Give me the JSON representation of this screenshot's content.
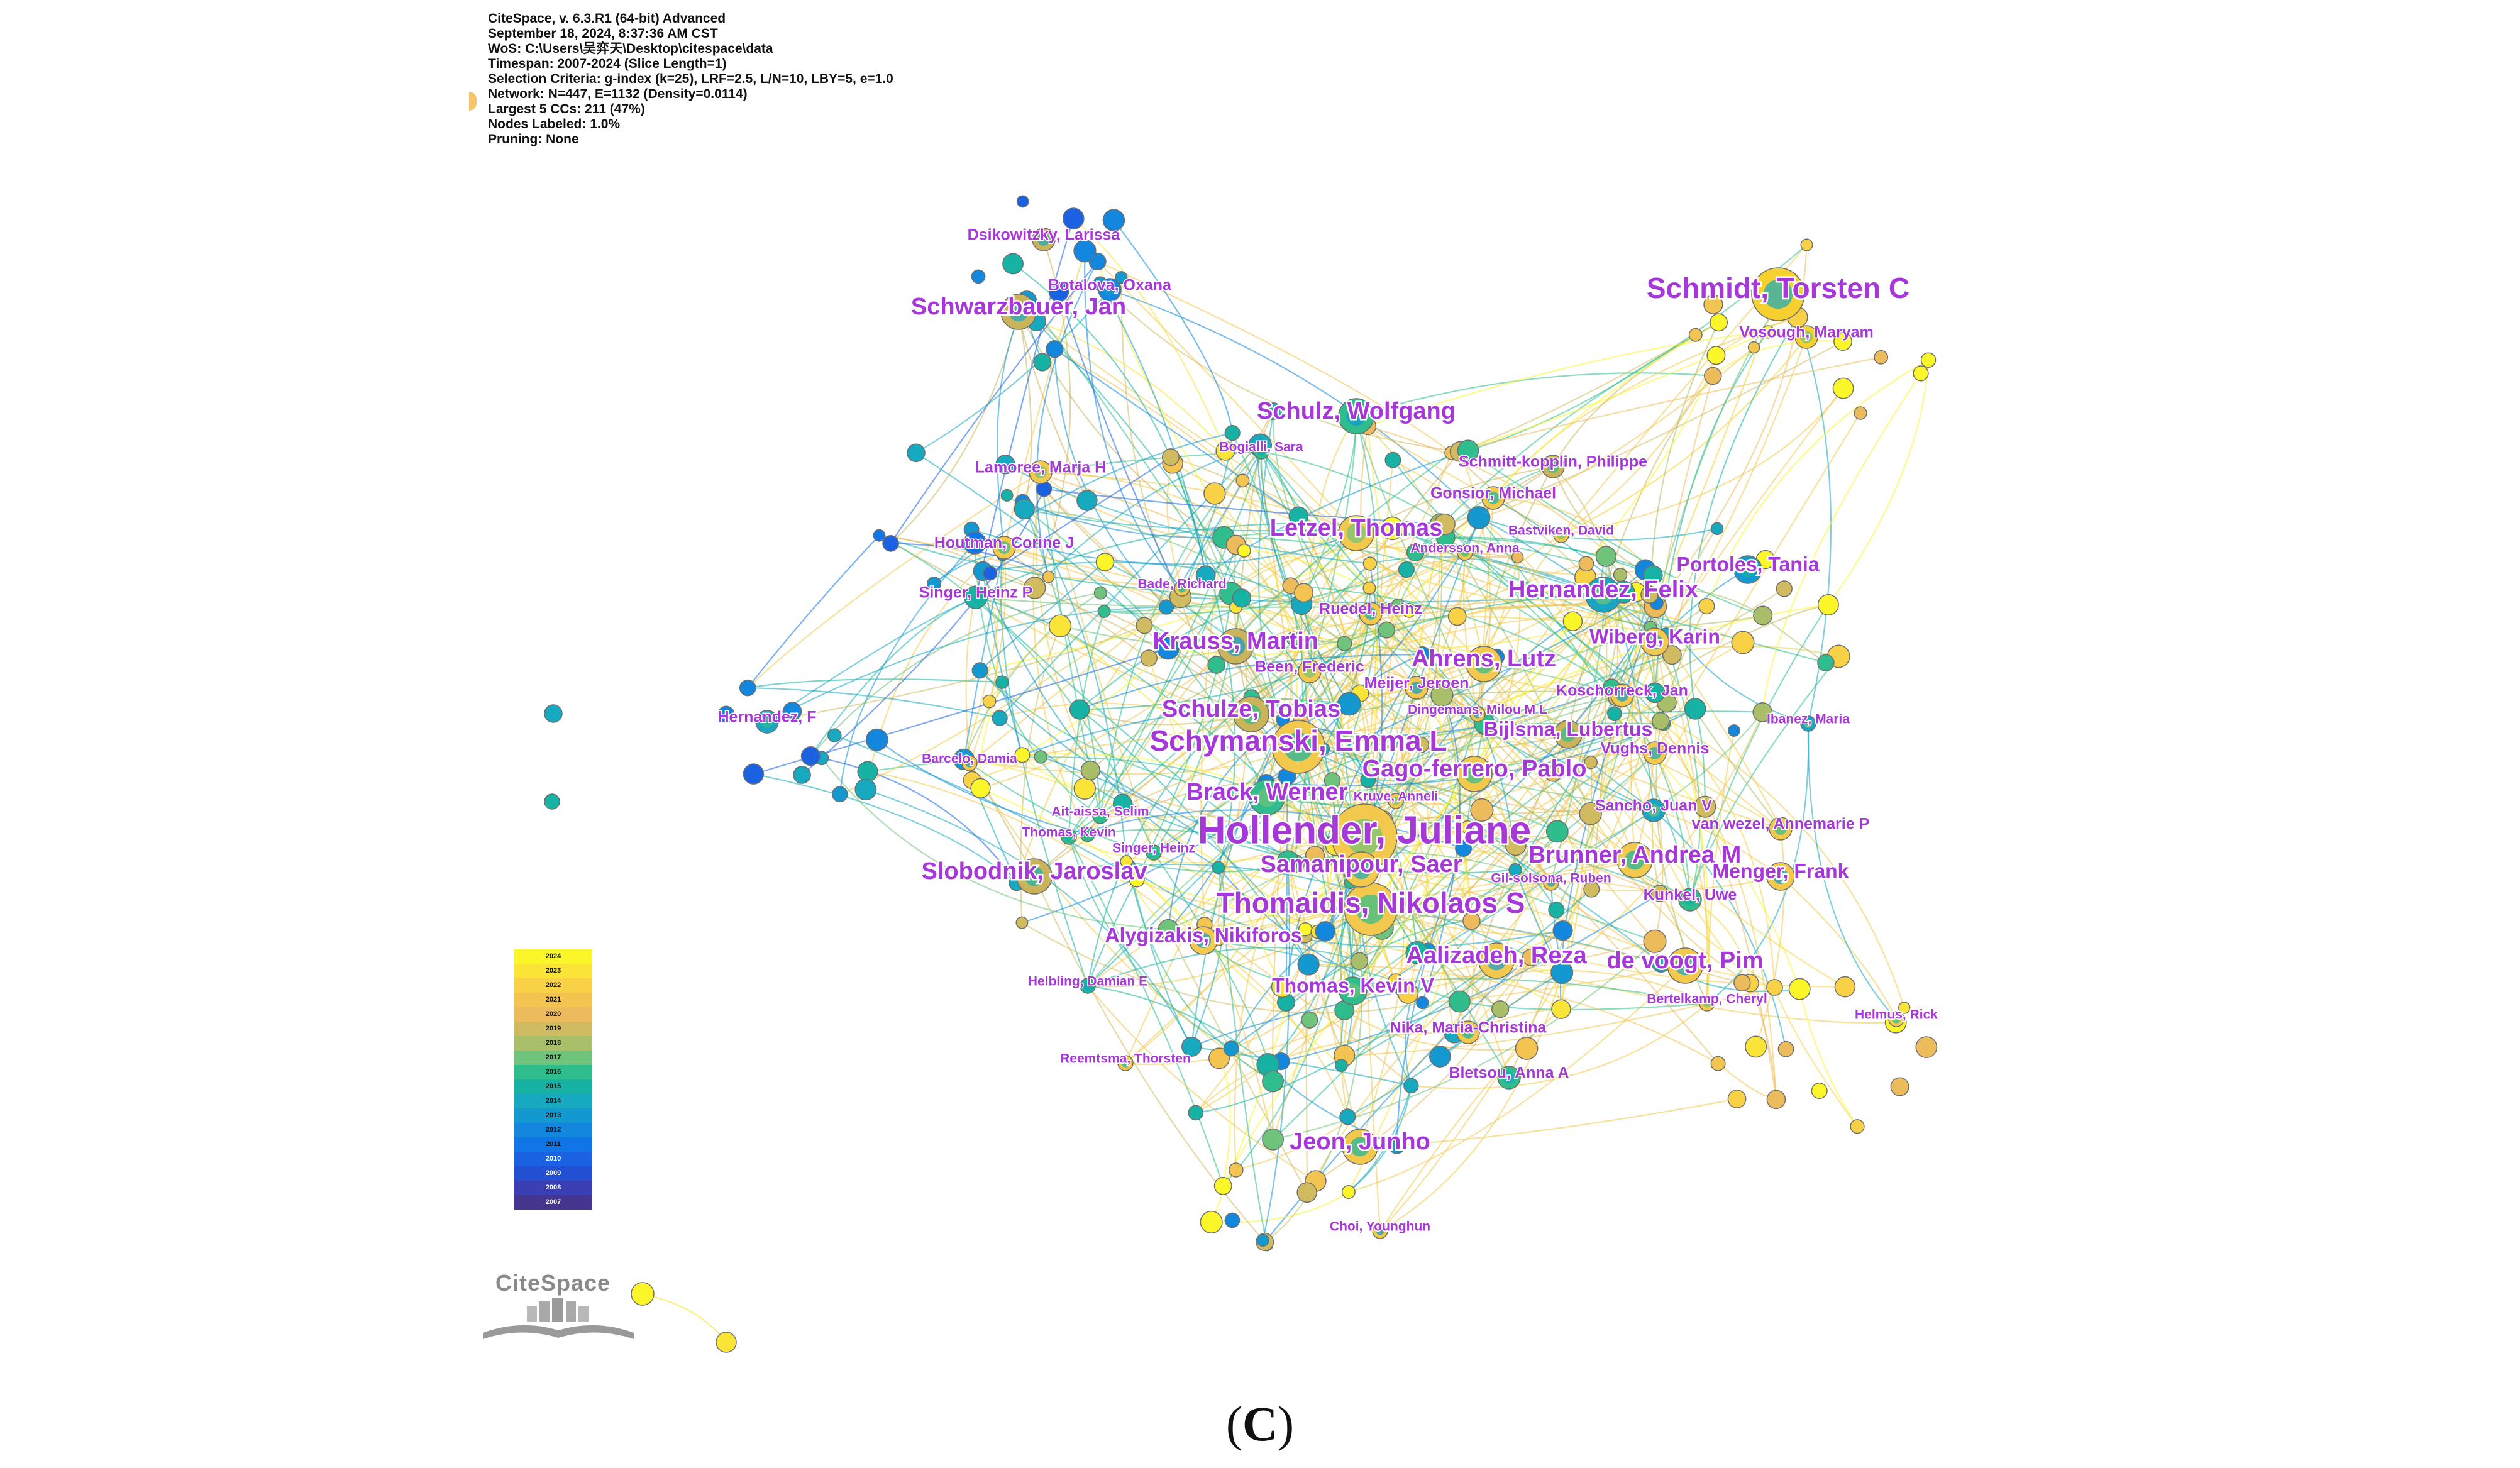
{
  "header": {
    "lines": [
      "CiteSpace, v. 6.3.R1 (64-bit) Advanced",
      "September 18, 2024, 8:37:36 AM CST",
      "WoS: C:\\Users\\吴弈天\\Desktop\\citespace\\data",
      "Timespan: 2007-2024 (Slice Length=1)",
      "Selection Criteria: g-index (k=25), LRF=2.5, L/N=10, LBY=5, e=1.0",
      "Network: N=447, E=1132 (Density=0.0114)",
      "Largest 5 CCs: 211 (47%)",
      "Nodes Labeled: 1.0%",
      "Pruning: None"
    ]
  },
  "legend": {
    "years": [
      "2024",
      "2023",
      "2022",
      "2021",
      "2020",
      "2019",
      "2018",
      "2017",
      "2016",
      "2015",
      "2014",
      "2013",
      "2012",
      "2011",
      "2010",
      "2009",
      "2008",
      "2007"
    ],
    "colors": [
      "#fbf62a",
      "#fae437",
      "#f8d146",
      "#f3c550",
      "#ecbb5c",
      "#d1bb60",
      "#a9be68",
      "#6fc37a",
      "#2fbd8d",
      "#16b3a4",
      "#16a9bf",
      "#1398d0",
      "#1287dd",
      "#1075e7",
      "#1b62e2",
      "#2350d3",
      "#3a40b3",
      "#46358f"
    ]
  },
  "logo": {
    "text": "CiteSpace"
  },
  "caption": {
    "letter": "C",
    "open": "(",
    "close": ")"
  },
  "authors": [
    {
      "label": "Hollender, Juliane",
      "size": "xl",
      "color": "#f2c94c"
    },
    {
      "label": "Thomaidis, Nikolaos S",
      "size": "l",
      "color": "#f2c94c"
    },
    {
      "label": "Schymanski, Emma L",
      "size": "l",
      "color": "#f2c94c"
    },
    {
      "label": "Schmidt, Torsten C",
      "size": "l",
      "color": "#f5d02e"
    },
    {
      "label": "Krauss, Martin",
      "size": "m",
      "color": "#c9b45c"
    },
    {
      "label": "Brack, Werner",
      "size": "m",
      "color": "#2fbd8d"
    },
    {
      "label": "Ahrens, Lutz",
      "size": "m",
      "color": "#f2c94c"
    },
    {
      "label": "Slobodnik, Jaroslav",
      "size": "m",
      "color": "#c9b45c"
    },
    {
      "label": "Samanipour, Saer",
      "size": "m",
      "color": "#f2c94c"
    },
    {
      "label": "Aalizadeh, Reza",
      "size": "m",
      "color": "#f2c94c"
    },
    {
      "label": "Hernandez, Felix",
      "size": "m",
      "color": "#1aa6c2"
    },
    {
      "label": "Gago-ferrero, Pablo",
      "size": "m",
      "color": "#f2c94c"
    },
    {
      "label": "Brunner, Andrea M",
      "size": "m",
      "color": "#f2c94c"
    },
    {
      "label": "Schwarzbauer, Jan",
      "size": "m",
      "color": "#c9b45c"
    },
    {
      "label": "Schulz, Wolfgang",
      "size": "m",
      "color": "#2fbd8d"
    },
    {
      "label": "Letzel, Thomas",
      "size": "m",
      "color": "#f2c94c"
    },
    {
      "label": "Schulze, Tobias",
      "size": "m",
      "color": "#c9b45c"
    },
    {
      "label": "Jeon, Junho",
      "size": "m",
      "color": "#f2c94c"
    },
    {
      "label": "de voogt, Pim",
      "size": "m",
      "color": "#f2c94c"
    },
    {
      "label": "Alygizakis, Nikiforos",
      "size": "s",
      "color": "#f2c94c"
    },
    {
      "label": "Thomas, Kevin V",
      "size": "s",
      "color": "#2fbd8d"
    },
    {
      "label": "Bijlsma, Lubertus",
      "size": "s",
      "color": "#c9b45c"
    },
    {
      "label": "Portoles, Tania",
      "size": "s",
      "color": "#1398d0"
    },
    {
      "label": "Wiberg, Karin",
      "size": "s",
      "color": "#f2c94c"
    },
    {
      "label": "Menger, Frank",
      "size": "s",
      "color": "#f2c94c"
    },
    {
      "label": "Lamoree, Marja H",
      "size": "xs",
      "color": "#f2c94c"
    },
    {
      "label": "Houtman, Corine J",
      "size": "xs",
      "color": "#f2c94c"
    },
    {
      "label": "Singer, Heinz P",
      "size": "xs",
      "color": "#16b3a4"
    },
    {
      "label": "Dsikowitzky, Larissa",
      "size": "xs",
      "color": "#c9b45c"
    },
    {
      "label": "Botalova, Oxana",
      "size": "xs",
      "color": "#1287dd"
    },
    {
      "label": "Vosough, Maryam",
      "size": "xs",
      "color": "#f5d02e"
    },
    {
      "label": "Schmitt-kopplin, Philippe",
      "size": "xs",
      "color": "#c9b45c"
    },
    {
      "label": "Gonsior, Michael",
      "size": "xs",
      "color": "#f2c94c"
    },
    {
      "label": "Ruedel, Heinz",
      "size": "xs",
      "color": "#f2c94c"
    },
    {
      "label": "Koschorreck, Jan",
      "size": "xs",
      "color": "#f2c94c"
    },
    {
      "label": "Sancho, Juan V",
      "size": "xs",
      "color": "#1aa6c2"
    },
    {
      "label": "van wezel, Annemarie P",
      "size": "xs",
      "color": "#f2c94c"
    },
    {
      "label": "Kunkel, Uwe",
      "size": "xs",
      "color": "#2fbd8d"
    },
    {
      "label": "Vughs, Dennis",
      "size": "xs",
      "color": "#f2c94c"
    },
    {
      "label": "Meijer, Jeroen",
      "size": "xs",
      "color": "#f2c94c"
    },
    {
      "label": "Been, Frederic",
      "size": "xs",
      "color": "#f2c94c"
    },
    {
      "label": "Hernandez, F",
      "size": "xs",
      "color": "#1aa6c2"
    },
    {
      "label": "Nika, Maria-Christina",
      "size": "xs",
      "color": "#f2c94c"
    },
    {
      "label": "Bletsou, Anna A",
      "size": "xs",
      "color": "#2fbd8d"
    },
    {
      "label": "Gil-solsona, Ruben",
      "size": "xxs",
      "color": "#f2c94c"
    },
    {
      "label": "Bertelkamp, Cheryl",
      "size": "xxs",
      "color": "#f2c94c"
    },
    {
      "label": "Helmus, Rick",
      "size": "xxs",
      "color": "#f2c94c"
    },
    {
      "label": "Reemtsma, Thorsten",
      "size": "xxs",
      "color": "#f2c94c"
    },
    {
      "label": "Helbling, Damian E",
      "size": "xxs",
      "color": "#16b3a4"
    },
    {
      "label": "Choi, Younghun",
      "size": "xxs",
      "color": "#f2c94c"
    },
    {
      "label": "Bastviken, David",
      "size": "xxs",
      "color": "#f2c94c"
    },
    {
      "label": "Andersson, Anna",
      "size": "xxs",
      "color": "#f2c94c"
    },
    {
      "label": "Bade, Richard",
      "size": "xxs",
      "color": "#f2c94c"
    },
    {
      "label": "Bogialli, Sara",
      "size": "xxs",
      "color": "#2fbd8d"
    },
    {
      "label": "Dingemans, Milou M L",
      "size": "xxs",
      "color": "#f2c94c"
    },
    {
      "label": "Kruve, Anneli",
      "size": "xxs",
      "color": "#f2c94c"
    },
    {
      "label": "Ait-aissa, Selim",
      "size": "xxs",
      "color": "#2fbd8d"
    },
    {
      "label": "Thomas, Kevin",
      "size": "xxs",
      "color": "#2fbd8d"
    },
    {
      "label": "Singer, Heinz",
      "size": "xxs",
      "color": "#2fbd8d"
    },
    {
      "label": "Barcelo, Damia",
      "size": "xxs",
      "color": "#f2c94c"
    },
    {
      "label": "Ibanez, Maria",
      "size": "xxs",
      "color": "#1aa6c2"
    }
  ]
}
